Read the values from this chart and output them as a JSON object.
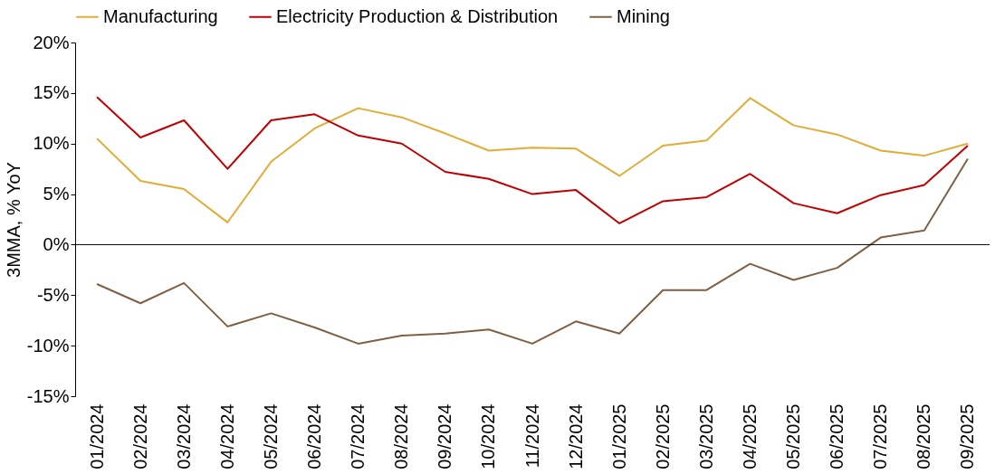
{
  "chart_data": {
    "type": "line",
    "ylabel": "3MMA, % YoY",
    "categories": [
      "01/2024",
      "02/2024",
      "03/2024",
      "04/2024",
      "05/2024",
      "06/2024",
      "07/2024",
      "08/2024",
      "09/2024",
      "10/2024",
      "11/2024",
      "12/2024",
      "01/2025",
      "02/2025",
      "03/2025",
      "04/2025",
      "05/2025",
      "06/2025",
      "07/2025",
      "08/2025",
      "09/2025"
    ],
    "series": [
      {
        "name": "Manufacturing",
        "color": "#e2ac35",
        "values": [
          10.5,
          6.3,
          5.5,
          2.2,
          8.2,
          11.5,
          13.5,
          12.6,
          11.0,
          9.3,
          9.6,
          9.5,
          6.8,
          9.8,
          10.3,
          14.5,
          11.8,
          10.9,
          9.3,
          8.8,
          10.0
        ]
      },
      {
        "name": "Electricity Production & Distribution",
        "color": "#c00000",
        "values": [
          14.6,
          10.6,
          12.3,
          7.5,
          12.3,
          12.9,
          10.8,
          10.0,
          7.2,
          6.5,
          5.0,
          5.4,
          2.1,
          4.3,
          4.7,
          7.0,
          4.1,
          3.1,
          4.9,
          5.9,
          9.8
        ]
      },
      {
        "name": "Mining",
        "color": "#7f6045",
        "values": [
          -3.9,
          -5.8,
          -3.8,
          -8.1,
          -6.8,
          -8.2,
          -9.8,
          -9.0,
          -8.8,
          -8.4,
          -9.8,
          -7.6,
          -8.8,
          -4.5,
          -4.5,
          -1.9,
          -3.5,
          -2.3,
          0.7,
          1.4,
          8.5
        ]
      }
    ],
    "ylim": [
      -15,
      20
    ],
    "yticks": [
      {
        "value": -15,
        "label": "-15%"
      },
      {
        "value": -10,
        "label": "-10%"
      },
      {
        "value": -5,
        "label": "-5%"
      },
      {
        "value": 0,
        "label": "0%"
      },
      {
        "value": 5,
        "label": "5%"
      },
      {
        "value": 10,
        "label": "10%"
      },
      {
        "value": 15,
        "label": "15%"
      },
      {
        "value": 20,
        "label": "20%"
      }
    ],
    "ref_lines": [
      {
        "axis": "y",
        "value": 0,
        "color": "#000000"
      }
    ],
    "grid": false,
    "legend": "top",
    "marker": "none",
    "line_style": "solid"
  }
}
